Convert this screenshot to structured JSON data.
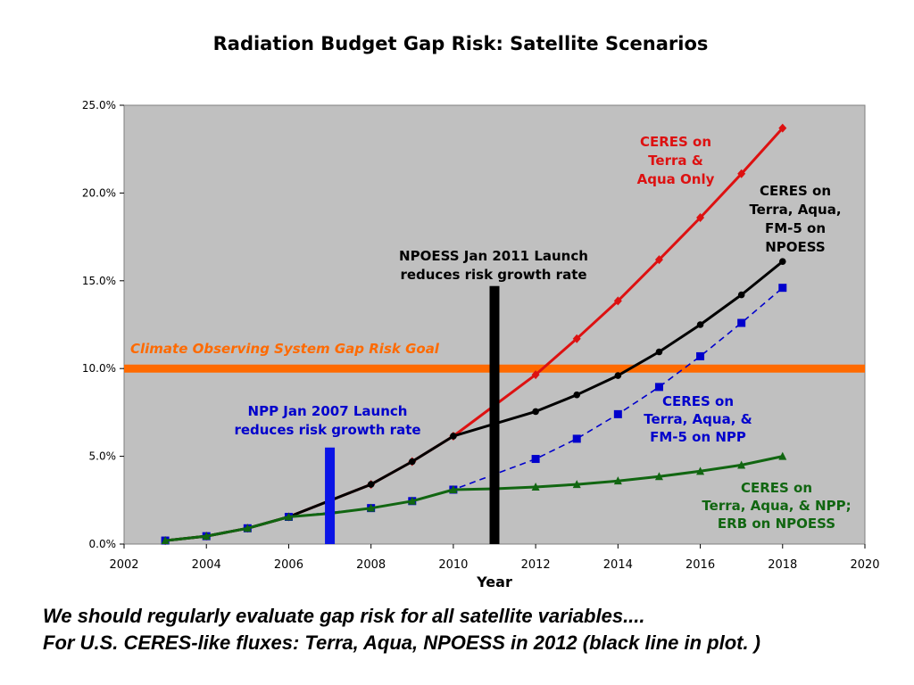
{
  "chart_data": {
    "type": "line",
    "title": "Radiation Budget Gap Risk: Satellite Scenarios",
    "xlabel": "Year",
    "ylabel": "",
    "xlim": [
      2002,
      2020
    ],
    "ylim": [
      0,
      25
    ],
    "x_ticks": [
      2002,
      2004,
      2006,
      2008,
      2010,
      2012,
      2014,
      2016,
      2018,
      2020
    ],
    "y_ticks": [
      0,
      5,
      10,
      15,
      20,
      25
    ],
    "y_tick_labels": [
      "0.0%",
      "5.0%",
      "10.0%",
      "15.0%",
      "20.0%",
      "25.0%"
    ],
    "grid": false,
    "plot_background": "#c0c0c0",
    "series": [
      {
        "name": "CERES on Terra & Aqua Only",
        "color": "#dd1111",
        "marker": "diamond",
        "dashed": false,
        "x": [
          2003,
          2004,
          2005,
          2006,
          2008,
          2009,
          2010,
          2012,
          2013,
          2014,
          2015,
          2016,
          2017,
          2018
        ],
        "y": [
          0.2,
          0.45,
          0.9,
          1.55,
          3.4,
          4.7,
          6.15,
          9.65,
          11.7,
          13.85,
          16.2,
          18.6,
          21.1,
          23.7
        ]
      },
      {
        "name": "CERES on Terra, Aqua, FM-5 on NPOESS",
        "color": "#000000",
        "marker": "circle",
        "dashed": false,
        "x": [
          2003,
          2004,
          2005,
          2006,
          2008,
          2009,
          2010,
          2012,
          2013,
          2014,
          2015,
          2016,
          2017,
          2018
        ],
        "y": [
          0.2,
          0.45,
          0.9,
          1.55,
          3.4,
          4.7,
          6.15,
          7.55,
          8.5,
          9.6,
          10.95,
          12.5,
          14.2,
          16.1
        ]
      },
      {
        "name": "CERES on Terra, Aqua, & FM-5 on NPP",
        "color": "#0000cc",
        "marker": "square",
        "dashed": true,
        "x": [
          2003,
          2004,
          2005,
          2006,
          2008,
          2009,
          2010,
          2012,
          2013,
          2014,
          2015,
          2016,
          2017,
          2018
        ],
        "y": [
          0.2,
          0.45,
          0.9,
          1.55,
          2.05,
          2.45,
          3.1,
          4.85,
          6.0,
          7.4,
          8.95,
          10.7,
          12.6,
          14.6
        ]
      },
      {
        "name": "CERES on Terra, Aqua, & NPP; ERB on NPOESS",
        "color": "#116611",
        "marker": "triangle",
        "dashed": false,
        "x": [
          2003,
          2004,
          2005,
          2006,
          2007,
          2008,
          2009,
          2010,
          2011,
          2012,
          2013,
          2014,
          2015,
          2016,
          2017,
          2018
        ],
        "y": [
          0.2,
          0.45,
          0.9,
          1.55,
          1.75,
          2.05,
          2.45,
          3.1,
          3.15,
          3.25,
          3.4,
          3.6,
          3.85,
          4.15,
          4.5,
          5.0
        ]
      }
    ],
    "goal_line": {
      "label": "Climate Observing System Gap Risk Goal",
      "value": 10,
      "color": "#ff6a00"
    },
    "launch_bars": [
      {
        "year": 2007,
        "top": 5.5,
        "color": "#0a14e6",
        "label_lines": [
          "NPP Jan 2007 Launch",
          "reduces risk growth rate"
        ],
        "label_color": "#0000cc"
      },
      {
        "year": 2011,
        "top": 14.7,
        "color": "#000000",
        "label_lines": [
          "NPOESS Jan 2011 Launch",
          "reduces risk growth rate"
        ],
        "label_color": "#000000"
      }
    ],
    "series_labels": [
      {
        "lines": [
          "CERES on",
          "Terra &",
          "Aqua Only"
        ],
        "color": "#dd1111"
      },
      {
        "lines": [
          "CERES on",
          "Terra, Aqua,",
          "FM-5 on",
          "NPOESS"
        ],
        "color": "#000000"
      },
      {
        "lines": [
          "CERES on",
          "Terra, Aqua, &",
          "FM-5 on NPP"
        ],
        "color": "#0000cc"
      },
      {
        "lines": [
          "CERES on",
          "Terra, Aqua, & NPP;",
          "ERB on NPOESS"
        ],
        "color": "#116611"
      }
    ]
  },
  "footer": {
    "line1": "We should regularly evaluate gap risk for all satellite variables....",
    "line2": "For U.S. CERES-like fluxes: Terra, Aqua, NPOESS in 2012 (black line in plot. )"
  }
}
